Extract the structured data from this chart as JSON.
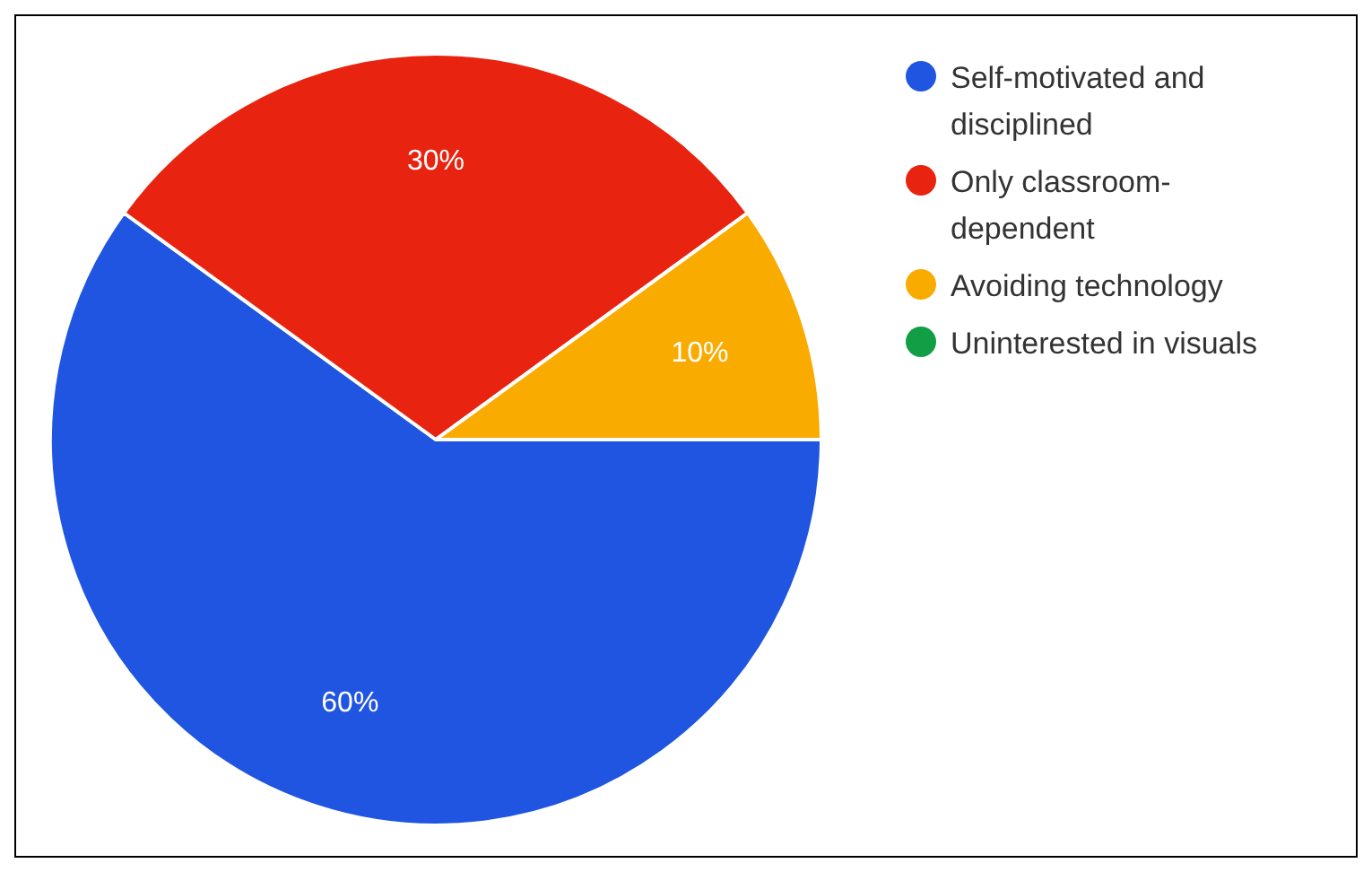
{
  "chart_data": {
    "type": "pie",
    "categories": [
      "Self-motivated and disciplined",
      "Only classroom-dependent",
      "Avoiding technology",
      "Uninterested in visuals"
    ],
    "values": [
      60,
      30,
      10,
      0
    ],
    "colors": [
      "#1f55e0",
      "#e8230f",
      "#f9ab00",
      "#129e45"
    ],
    "value_labels": [
      "60%",
      "30%",
      "10%",
      null
    ],
    "legend": "top right"
  }
}
